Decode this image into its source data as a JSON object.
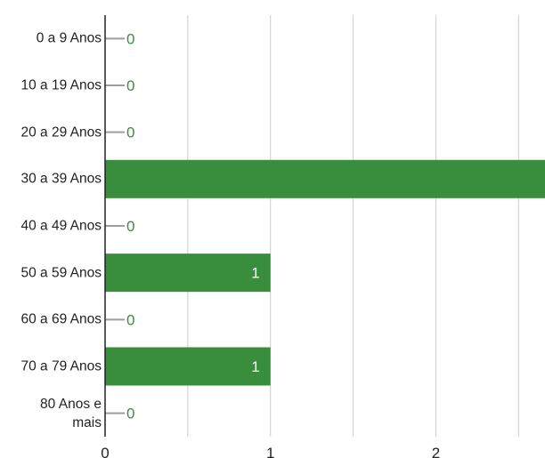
{
  "chart_data": {
    "type": "bar",
    "orientation": "horizontal",
    "categories": [
      "0 a 9 Anos",
      "10 a 19 Anos",
      "20 a 29 Anos",
      "30 a 39 Anos",
      "40 a 49 Anos",
      "50 a 59 Anos",
      "60 a 69 Anos",
      "70 a 79 Anos",
      "80 Anos e mais"
    ],
    "values": [
      0,
      0,
      0,
      3,
      0,
      1,
      0,
      1,
      0
    ],
    "color": "#388e3c",
    "xlim": [
      0,
      2.66
    ],
    "xticks": [
      0,
      1,
      2
    ],
    "minor_xticks": [
      0.5,
      1.5,
      2.5
    ],
    "grid": true
  }
}
